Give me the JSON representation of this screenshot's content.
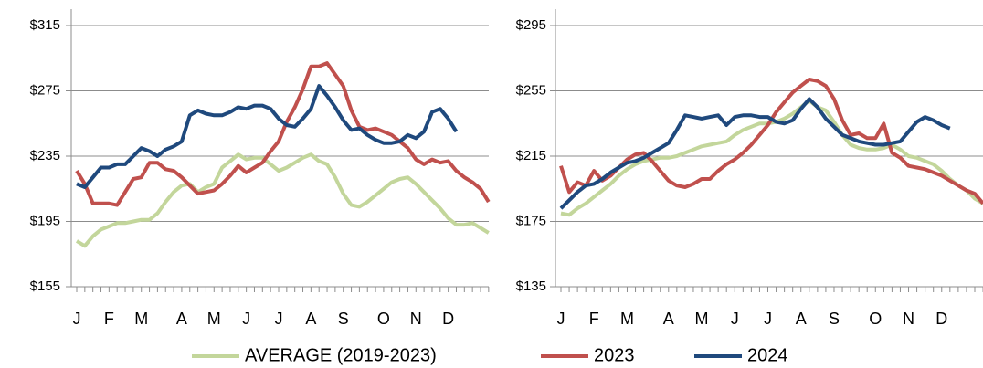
{
  "chart_data": [
    {
      "type": "line",
      "categories": [
        "J",
        null,
        null,
        null,
        "F",
        null,
        null,
        null,
        "M",
        null,
        null,
        null,
        null,
        "A",
        null,
        null,
        null,
        "M",
        null,
        null,
        null,
        "J",
        null,
        null,
        null,
        "J",
        null,
        null,
        null,
        "A",
        null,
        null,
        null,
        "S",
        null,
        null,
        null,
        null,
        "O",
        null,
        null,
        null,
        "N",
        null,
        null,
        null,
        "D",
        null,
        null,
        null,
        null,
        null
      ],
      "ylim": [
        155,
        315
      ],
      "yticks": [
        {
          "value": 155,
          "label": "$155"
        },
        {
          "value": 195,
          "label": "$195"
        },
        {
          "value": 235,
          "label": "$235"
        },
        {
          "value": 275,
          "label": "$275"
        },
        {
          "value": 315,
          "label": "$315"
        }
      ],
      "grid": true,
      "series": [
        {
          "name": "AVERAGE (2019-2023)",
          "color": "#c3d69b",
          "values": [
            183,
            180,
            186,
            190,
            192,
            194,
            194,
            195,
            196,
            196,
            200,
            207,
            213,
            217,
            218,
            213,
            216,
            218,
            228,
            232,
            236,
            233,
            234,
            234,
            230,
            226,
            228,
            231,
            234,
            236,
            232,
            230,
            222,
            212,
            205,
            204,
            207,
            211,
            215,
            219,
            221,
            222,
            218,
            213,
            208,
            203,
            197,
            193,
            193,
            194,
            191,
            188
          ]
        },
        {
          "name": "2023",
          "color": "#c0504d",
          "values": [
            226,
            218,
            206,
            206,
            206,
            205,
            213,
            221,
            222,
            231,
            231,
            227,
            226,
            222,
            217,
            212,
            213,
            214,
            218,
            223,
            229,
            225,
            228,
            231,
            238,
            244,
            256,
            265,
            276,
            290,
            290,
            292,
            285,
            278,
            263,
            253,
            251,
            252,
            250,
            248,
            244,
            240,
            233,
            230,
            233,
            231,
            232,
            226,
            222,
            219,
            215,
            207
          ]
        },
        {
          "name": "2024",
          "color": "#1f497d",
          "values": [
            218,
            216,
            222,
            228,
            228,
            230,
            230,
            235,
            240,
            238,
            235,
            239,
            241,
            244,
            260,
            263,
            261,
            260,
            260,
            262,
            265,
            264,
            266,
            266,
            264,
            258,
            254,
            253,
            258,
            264,
            278,
            272,
            265,
            257,
            251,
            252,
            248,
            245,
            243,
            243,
            244,
            248,
            246,
            250,
            262,
            264,
            258,
            250,
            null,
            null,
            null,
            null
          ]
        }
      ]
    },
    {
      "type": "line",
      "categories": [
        "J",
        null,
        null,
        null,
        "F",
        null,
        null,
        null,
        "M",
        null,
        null,
        null,
        null,
        "A",
        null,
        null,
        null,
        "M",
        null,
        null,
        null,
        "J",
        null,
        null,
        null,
        "J",
        null,
        null,
        null,
        "A",
        null,
        null,
        null,
        "S",
        null,
        null,
        null,
        null,
        "O",
        null,
        null,
        null,
        "N",
        null,
        null,
        null,
        "D",
        null,
        null,
        null,
        null,
        null
      ],
      "ylim": [
        135,
        295
      ],
      "yticks": [
        {
          "value": 135,
          "label": "$135"
        },
        {
          "value": 175,
          "label": "$175"
        },
        {
          "value": 215,
          "label": "$215"
        },
        {
          "value": 255,
          "label": "$255"
        },
        {
          "value": 295,
          "label": "$295"
        }
      ],
      "grid": true,
      "series": [
        {
          "color": "#c3d69b",
          "values": [
            180,
            179,
            183,
            186,
            190,
            194,
            198,
            203,
            207,
            210,
            212,
            213,
            214,
            214,
            215,
            217,
            219,
            221,
            222,
            223,
            224,
            228,
            231,
            233,
            235,
            235,
            236,
            238,
            241,
            245,
            249,
            245,
            243,
            236,
            228,
            222,
            220,
            219,
            219,
            220,
            222,
            219,
            215,
            214,
            212,
            210,
            206,
            201,
            197,
            194,
            189,
            186
          ]
        },
        {
          "color": "#c0504d",
          "values": [
            209,
            193,
            199,
            197,
            206,
            200,
            203,
            208,
            213,
            216,
            217,
            212,
            206,
            200,
            197,
            196,
            198,
            201,
            201,
            206,
            210,
            213,
            217,
            222,
            228,
            234,
            242,
            248,
            254,
            258,
            262,
            261,
            258,
            250,
            237,
            228,
            229,
            226,
            226,
            235,
            217,
            214,
            209,
            208,
            207,
            205,
            203,
            200,
            197,
            194,
            192,
            186
          ]
        },
        {
          "color": "#1f497d",
          "values": [
            183,
            188,
            193,
            197,
            198,
            201,
            205,
            208,
            211,
            212,
            214,
            217,
            220,
            223,
            231,
            240,
            239,
            238,
            239,
            240,
            234,
            239,
            240,
            240,
            239,
            239,
            236,
            235,
            237,
            244,
            250,
            245,
            238,
            233,
            228,
            226,
            224,
            223,
            222,
            222,
            223,
            224,
            230,
            236,
            239,
            237,
            234,
            232,
            null,
            null,
            null,
            null
          ]
        }
      ]
    }
  ]
}
